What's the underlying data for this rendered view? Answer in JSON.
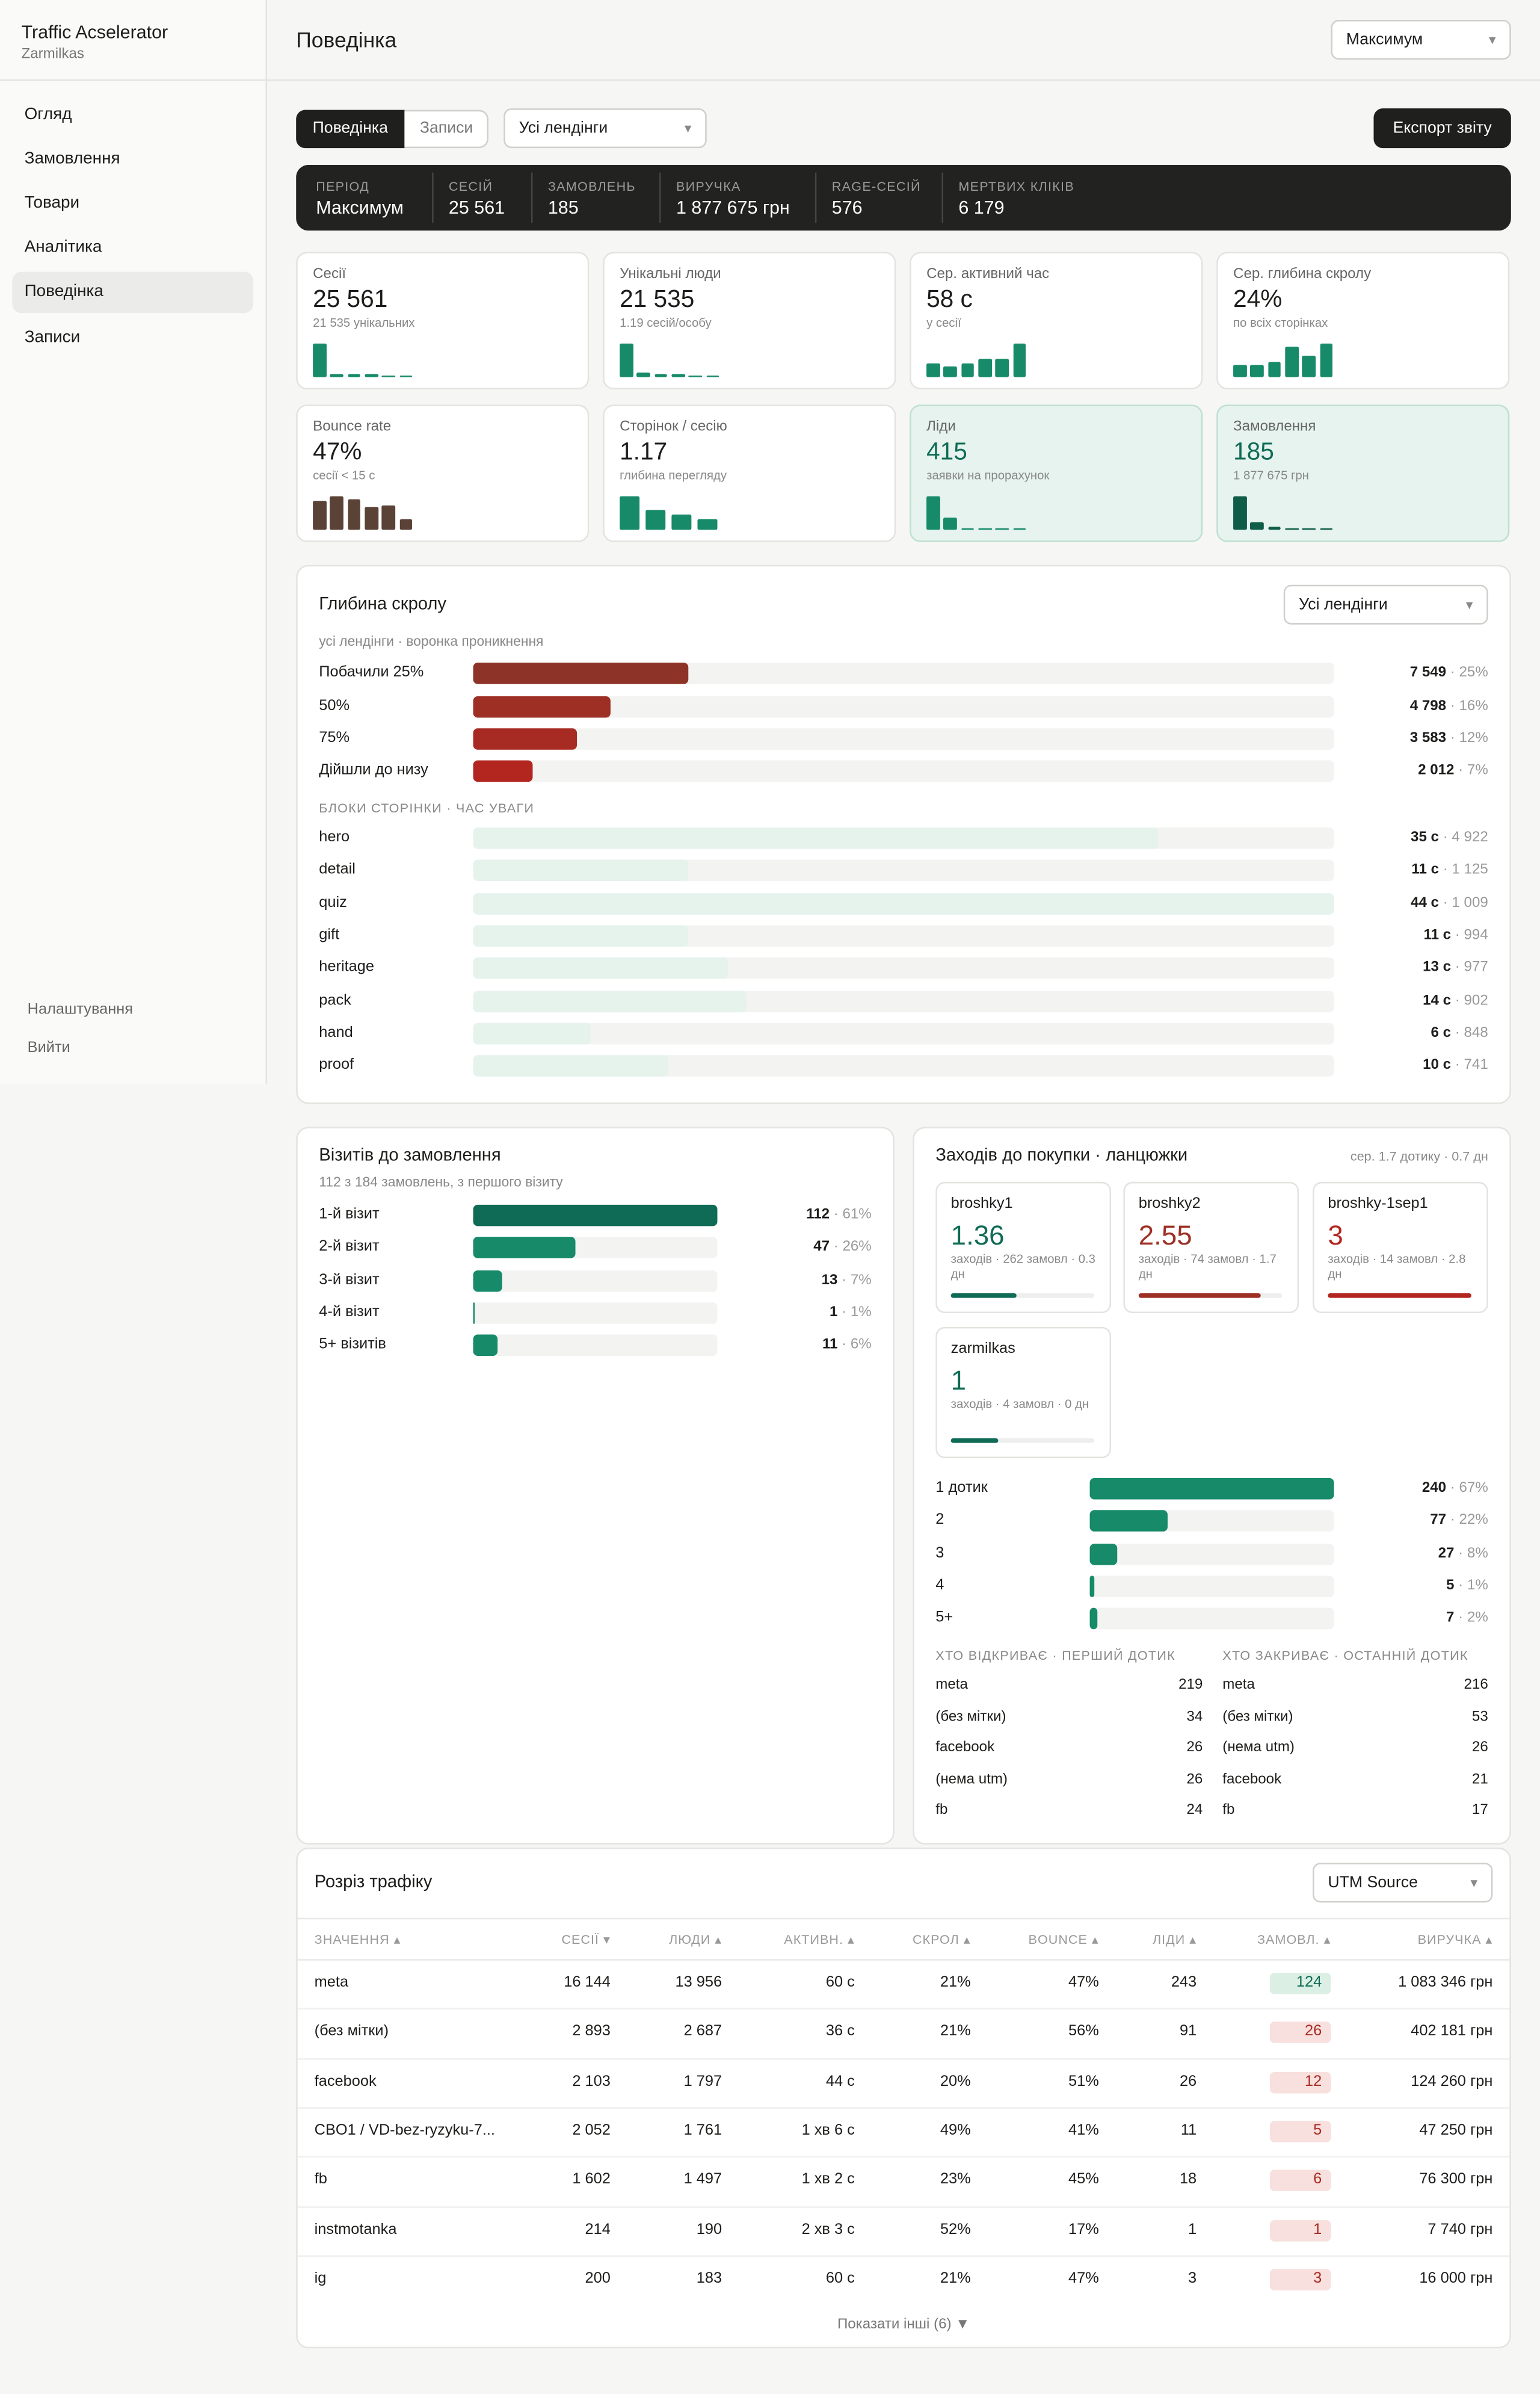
{
  "sidebar": {
    "app_title": "Traffic Acselerator",
    "workspace": "Zarmilkas",
    "nav": [
      "Огляд",
      "Замовлення",
      "Товари",
      "Аналітика",
      "Поведінка",
      "Записи"
    ],
    "active_index": 4,
    "footer_links": [
      "Налаштування",
      "Вийти"
    ]
  },
  "header": {
    "title": "Поведінка",
    "period_select": "Максимум"
  },
  "toolbar": {
    "tabs": [
      "Поведінка",
      "Записи"
    ],
    "active_tab": 0,
    "landing_select": "Усі лендінги",
    "export_button": "Експорт звіту"
  },
  "summary": [
    {
      "label": "ПЕРІОД",
      "value": "Максимум"
    },
    {
      "label": "СЕСІЙ",
      "value": "25 561"
    },
    {
      "label": "ЗАМОВЛЕНЬ",
      "value": "185"
    },
    {
      "label": "ВИРУЧКА",
      "value": "1 877 675 грн"
    },
    {
      "label": "RAGE-СЕСІЙ",
      "value": "576"
    },
    {
      "label": "МЕРТВИХ КЛІКІВ",
      "value": "6 179"
    }
  ],
  "kpi_cards": [
    {
      "label": "Сесії",
      "value": "25 561",
      "sub": "21 535 унікальних",
      "bars": [
        100,
        10,
        7,
        7,
        6,
        5
      ],
      "color": "#168a69",
      "highlight": false
    },
    {
      "label": "Унікальні люди",
      "value": "21 535",
      "sub": "1.19 сесій/особу",
      "bars": [
        100,
        12,
        7,
        7,
        6,
        5
      ],
      "color": "#168a69",
      "highlight": false
    },
    {
      "label": "Сер. активний час",
      "value": "58 с",
      "sub": "у сесії",
      "bars": [
        40,
        30,
        40,
        55,
        55,
        100
      ],
      "color": "#168a69",
      "highlight": false
    },
    {
      "label": "Сер. глибина скролу",
      "value": "24%",
      "sub": "по всіх сторінках",
      "bars": [
        35,
        35,
        45,
        90,
        65,
        100
      ],
      "color": "#168a69",
      "highlight": false
    },
    {
      "label": "Bounce rate",
      "value": "47%",
      "sub": "сесії < 15 с",
      "bars": [
        85,
        100,
        90,
        70,
        75,
        30
      ],
      "color": "#5b4236",
      "highlight": false
    },
    {
      "label": "Сторінок / сесію",
      "value": "1.17",
      "sub": "глибина перегляду",
      "bars": [
        100,
        60,
        45,
        30
      ],
      "color": "#168a69",
      "highlight": false
    },
    {
      "label": "Ліди",
      "value": "415",
      "sub": "заявки на прорахунок",
      "bars": [
        100,
        35,
        5,
        5,
        5,
        5
      ],
      "color": "#168a69",
      "highlight": true
    },
    {
      "label": "Замовлення",
      "value": "185",
      "sub": "1 877 675 грн",
      "bars": [
        100,
        22,
        7,
        5,
        5,
        5
      ],
      "color": "#0f5d48",
      "highlight": true
    }
  ],
  "scroll_depth": {
    "title": "Глибина скролу",
    "select": "Усі лендінги",
    "subtitle": "усі лендінги · воронка проникнення",
    "rows": [
      {
        "label": "Побачили 25%",
        "count": "7 549",
        "pct": 25,
        "pct_label": "25%",
        "color": "#8e3327"
      },
      {
        "label": "50%",
        "count": "4 798",
        "pct": 16,
        "pct_label": "16%",
        "color": "#9d2f25"
      },
      {
        "label": "75%",
        "count": "3 583",
        "pct": 12,
        "pct_label": "12%",
        "color": "#a82b23"
      },
      {
        "label": "Дійшли до низу",
        "count": "2 012",
        "pct": 7,
        "pct_label": "7%",
        "color": "#b32620"
      }
    ],
    "blocks_title": "БЛОКИ СТОРІНКИ · ЧАС УВАГИ",
    "blocks": [
      {
        "label": "hero",
        "seconds": 35,
        "seconds_label": "35 с",
        "views": "4 922"
      },
      {
        "label": "detail",
        "seconds": 11,
        "seconds_label": "11 с",
        "views": "1 125"
      },
      {
        "label": "quiz",
        "seconds": 44,
        "seconds_label": "44 с",
        "views": "1 009"
      },
      {
        "label": "gift",
        "seconds": 11,
        "seconds_label": "11 с",
        "views": "994"
      },
      {
        "label": "heritage",
        "seconds": 13,
        "seconds_label": "13 с",
        "views": "977"
      },
      {
        "label": "pack",
        "seconds": 14,
        "seconds_label": "14 с",
        "views": "902"
      },
      {
        "label": "hand",
        "seconds": 6,
        "seconds_label": "6 с",
        "views": "848"
      },
      {
        "label": "proof",
        "seconds": 10,
        "seconds_label": "10 с",
        "views": "741"
      }
    ]
  },
  "visits": {
    "title": "Візитів до замовлення",
    "subtitle": "112 з 184 замовлень, з першого візиту",
    "rows": [
      {
        "label": "1-й візит",
        "count": 112,
        "pct_label": "61%"
      },
      {
        "label": "2-й візит",
        "count": 47,
        "pct_label": "26%"
      },
      {
        "label": "3-й візит",
        "count": 13,
        "pct_label": "7%"
      },
      {
        "label": "4-й візит",
        "count": 1,
        "pct_label": "1%"
      },
      {
        "label": "5+ візитів",
        "count": 11,
        "pct_label": "6%"
      }
    ]
  },
  "chains": {
    "title": "Заходів до покупки · ланцюжки",
    "meta": "сер. 1.7 дотику · 0.7 дн",
    "cards": [
      {
        "name": "broshky1",
        "value": 1.36,
        "detail": "заходів · 262 замовл · 0.3 дн",
        "color": "#0f6b55"
      },
      {
        "name": "broshky2",
        "value": 2.55,
        "detail": "заходів · 74 замовл · 1.7 дн",
        "color": "#9d2f25"
      },
      {
        "name": "broshky-1sep1",
        "value": 3,
        "detail": "заходів · 14 замовл · 2.8 дн",
        "color": "#b32620"
      },
      {
        "name": "zarmilkas",
        "value": 1,
        "detail": "заходів · 4 замовл · 0 дн",
        "color": "#0f6b55"
      }
    ],
    "touches": [
      {
        "label": "1 дотик",
        "count": 240,
        "pct_label": "67%"
      },
      {
        "label": "2",
        "count": 77,
        "pct_label": "22%"
      },
      {
        "label": "3",
        "count": 27,
        "pct_label": "8%"
      },
      {
        "label": "4",
        "count": 5,
        "pct_label": "1%"
      },
      {
        "label": "5+",
        "count": 7,
        "pct_label": "2%"
      }
    ],
    "openers": {
      "title": "ХТО ВІДКРИВАЄ · ПЕРШИЙ ДОТИК",
      "rows": [
        [
          "meta",
          "219"
        ],
        [
          "(без мітки)",
          "34"
        ],
        [
          "facebook",
          "26"
        ],
        [
          "(нема utm)",
          "26"
        ],
        [
          "fb",
          "24"
        ]
      ]
    },
    "closers": {
      "title": "ХТО ЗАКРИВАЄ · ОСТАННІЙ ДОТИК",
      "rows": [
        [
          "meta",
          "216"
        ],
        [
          "(без мітки)",
          "53"
        ],
        [
          "(нема utm)",
          "26"
        ],
        [
          "facebook",
          "21"
        ],
        [
          "fb",
          "17"
        ]
      ]
    }
  },
  "traffic": {
    "title": "Розріз трафіку",
    "select": "UTM Source",
    "columns": [
      "ЗНАЧЕННЯ ▴",
      "СЕСІЇ ▾",
      "ЛЮДИ ▴",
      "АКТИВН. ▴",
      "СКРОЛ ▴",
      "BOUNCE ▴",
      "ЛІДИ ▴",
      "ЗАМОВЛ. ▴",
      "ВИРУЧКА ▴"
    ],
    "rows": [
      {
        "cells": [
          "meta",
          "16 144",
          "13 956",
          "60 с",
          "21%",
          "47%",
          "243",
          "124",
          "1 083 346 грн"
        ],
        "badge": {
          "bg": "#dcefe5",
          "fg": "#0f6b55"
        }
      },
      {
        "cells": [
          "(без мітки)",
          "2 893",
          "2 687",
          "36 с",
          "21%",
          "56%",
          "91",
          "26",
          "402 181 грн"
        ],
        "badge": {
          "bg": "#f7e0dd",
          "fg": "#a82b23"
        }
      },
      {
        "cells": [
          "facebook",
          "2 103",
          "1 797",
          "44 с",
          "20%",
          "51%",
          "26",
          "12",
          "124 260 грн"
        ],
        "badge": {
          "bg": "#f7e0dd",
          "fg": "#a82b23"
        }
      },
      {
        "cells": [
          "CBO1 / VD-bez-ryzyku-7...",
          "2 052",
          "1 761",
          "1 хв 6 с",
          "49%",
          "41%",
          "11",
          "5",
          "47 250 грн"
        ],
        "badge": {
          "bg": "#f7e0dd",
          "fg": "#a82b23"
        }
      },
      {
        "cells": [
          "fb",
          "1 602",
          "1 497",
          "1 хв 2 с",
          "23%",
          "45%",
          "18",
          "6",
          "76 300 грн"
        ],
        "badge": {
          "bg": "#f7e0dd",
          "fg": "#a82b23"
        }
      },
      {
        "cells": [
          "instmotanka",
          "214",
          "190",
          "2 хв 3 с",
          "52%",
          "17%",
          "1",
          "1",
          "7 740 грн"
        ],
        "badge": {
          "bg": "#f7e0dd",
          "fg": "#a82b23"
        }
      },
      {
        "cells": [
          "ig",
          "200",
          "183",
          "60 с",
          "21%",
          "47%",
          "3",
          "3",
          "16 000 грн"
        ],
        "badge": {
          "bg": "#f7e0dd",
          "fg": "#a82b23"
        }
      }
    ],
    "show_more": "Показати інші (6) ▼"
  }
}
